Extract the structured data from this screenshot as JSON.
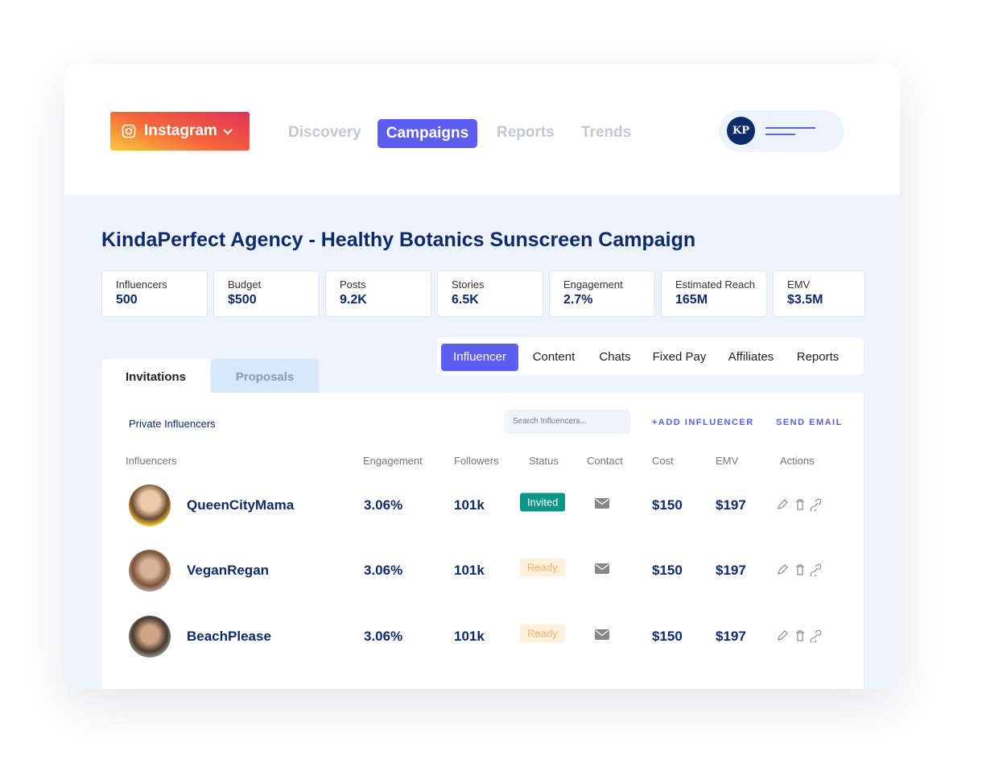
{
  "nav": {
    "platform": "Instagram",
    "items": [
      "Discovery",
      "Campaigns",
      "Reports",
      "Trends"
    ]
  },
  "user": {
    "initials": "KP"
  },
  "title": "KindaPerfect Agency - Healthy Botanics Sunscreen Campaign",
  "stats": [
    {
      "label": "Influencers",
      "value": "500"
    },
    {
      "label": "Budget",
      "value": "$500"
    },
    {
      "label": "Posts",
      "value": "9.2K"
    },
    {
      "label": "Stories",
      "value": "6.5K"
    },
    {
      "label": "Engagement",
      "value": "2.7%"
    },
    {
      "label": "Estimated Reach",
      "value": "165M"
    },
    {
      "label": "EMV",
      "value": "$3.5M"
    }
  ],
  "subtabs": [
    "Influencer",
    "Content",
    "Chats",
    "Fixed Pay",
    "Affiliates",
    "Reports"
  ],
  "tabs": [
    "Invitations",
    "Proposals"
  ],
  "toolbar": {
    "heading": "Private Influencers",
    "search_placeholder": "Search Influencers...",
    "add": "+ADD INFLUENCER",
    "email": "SEND EMAIL"
  },
  "table": {
    "columns": [
      "Influencers",
      "Engagement",
      "Followers",
      "Status",
      "Contact",
      "Cost",
      "EMV",
      "Actions"
    ],
    "rows": [
      [
        "QueenCityMama",
        "3.06%",
        "101k",
        "Invited",
        "$150",
        "$197"
      ],
      [
        "VeganRegan",
        "3.06%",
        "101k",
        "Ready",
        "$150",
        "$197"
      ],
      [
        "BeachPlease",
        "3.06%",
        "101k",
        "Ready",
        "$150",
        "$197"
      ]
    ]
  }
}
